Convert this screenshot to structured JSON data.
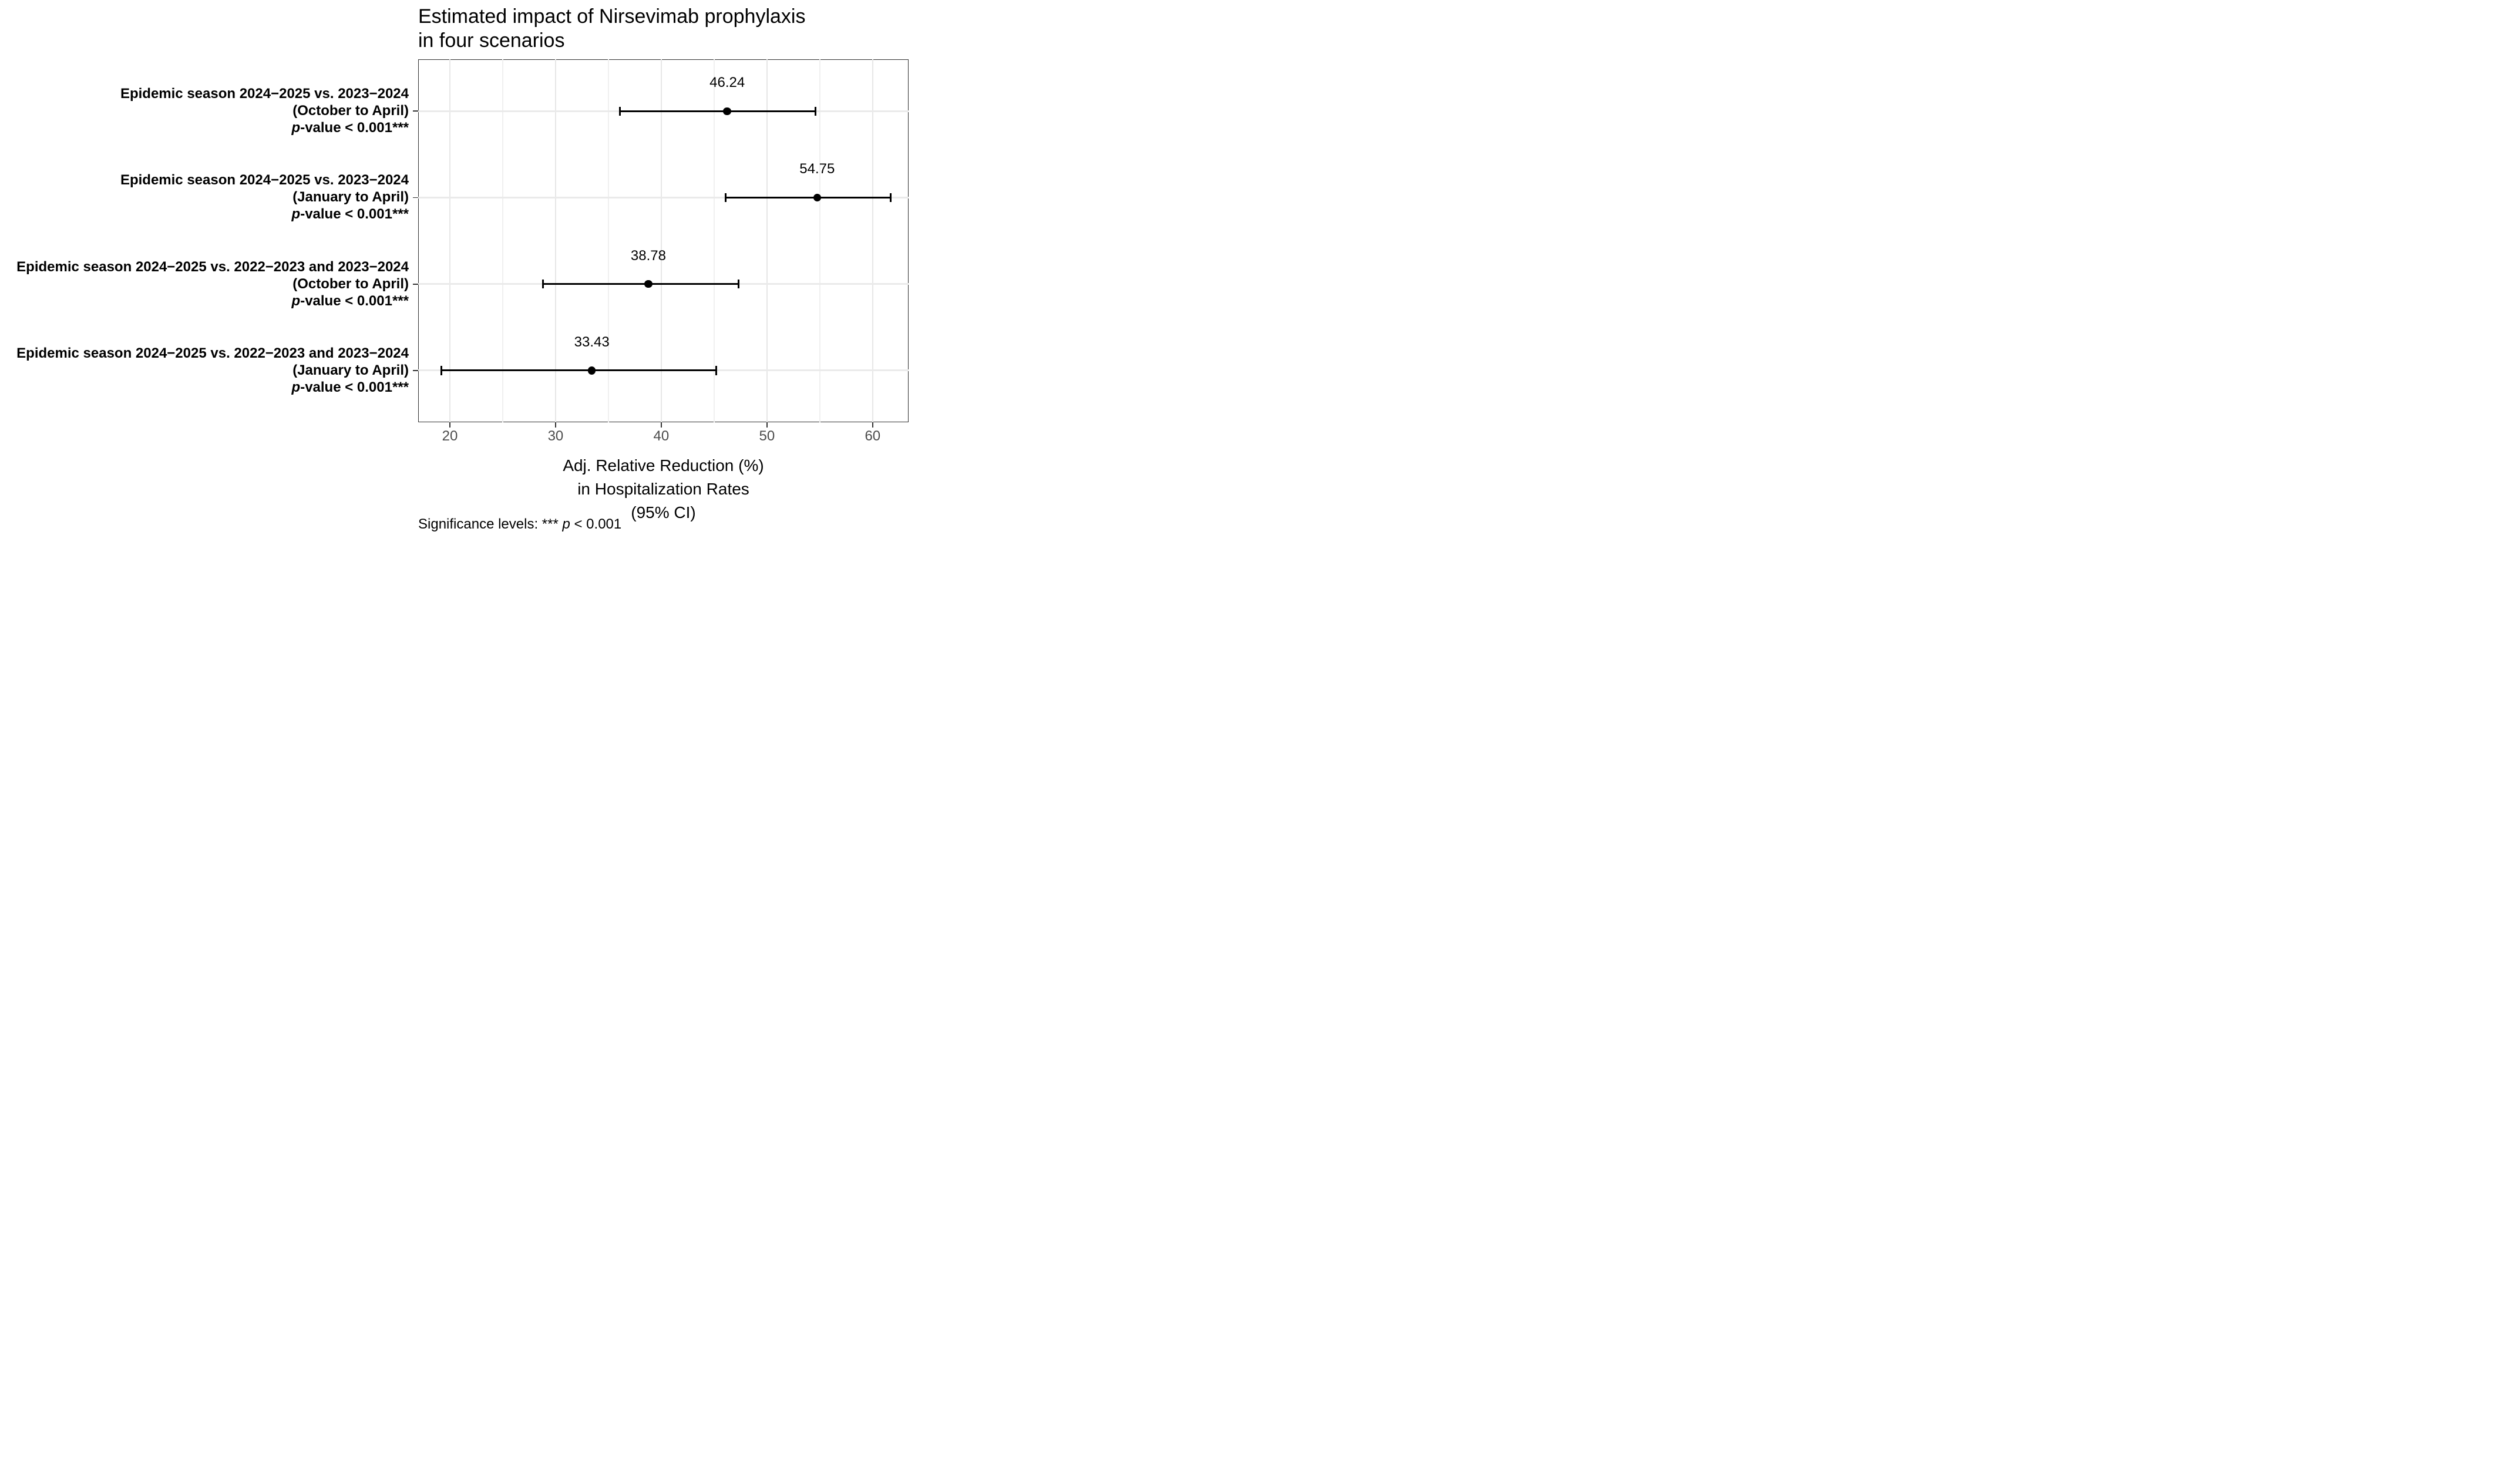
{
  "page": {
    "background": "#ffffff"
  },
  "chart_data": {
    "type": "scatter",
    "subtype": "forest-plot-horizontal-ci",
    "title": "Estimated impact of Nirsevimab prophylaxis\nin four scenarios",
    "xlabel": "Adj. Relative Reduction (%)\nin Hospitalization Rates\n(95% CI)",
    "footnote": {
      "prefix": "Significance levels: *** ",
      "italic": "p",
      "suffix": " < 0.001"
    },
    "xlim": [
      17,
      63.4
    ],
    "xticks": [
      20,
      30,
      40,
      50,
      60
    ],
    "xticks_minor": [
      25,
      35,
      45,
      55
    ],
    "grid": true,
    "legend": "none",
    "rows": [
      {
        "label_lines": [
          "Epidemic season 2024−2025 vs. 2023−2024",
          "(October to April)"
        ],
        "pvalue_italic": "p",
        "pvalue_rest": "-value < 0.001***",
        "estimate": 46.24,
        "estimate_label": "46.24",
        "ci_low": 36.1,
        "ci_high": 54.6
      },
      {
        "label_lines": [
          "Epidemic season 2024−2025 vs. 2023−2024",
          "(January to April)"
        ],
        "pvalue_italic": "p",
        "pvalue_rest": "-value < 0.001***",
        "estimate": 54.75,
        "estimate_label": "54.75",
        "ci_low": 46.1,
        "ci_high": 61.7
      },
      {
        "label_lines": [
          "Epidemic season 2024−2025 vs. 2022−2023 and 2023−2024",
          "(October to April)"
        ],
        "pvalue_italic": "p",
        "pvalue_rest": "-value < 0.001***",
        "estimate": 38.78,
        "estimate_label": "38.78",
        "ci_low": 28.8,
        "ci_high": 47.3
      },
      {
        "label_lines": [
          "Epidemic season 2024−2025 vs. 2022−2023 and 2023−2024",
          "(January to April)"
        ],
        "pvalue_italic": "p",
        "pvalue_rest": "-value < 0.001***",
        "estimate": 33.43,
        "estimate_label": "33.43",
        "ci_low": 19.2,
        "ci_high": 45.2
      }
    ],
    "colors": {
      "point": "#000000",
      "error_bar": "#000000",
      "grid_major": "#e7e7e7",
      "grid_minor": "#f0f0f0",
      "row_gridline": "#eaeaea",
      "panel_border": "#333333",
      "tick": "#333333",
      "tick_label": "#4d4d4d",
      "text": "#000000",
      "background": "#ffffff"
    }
  }
}
